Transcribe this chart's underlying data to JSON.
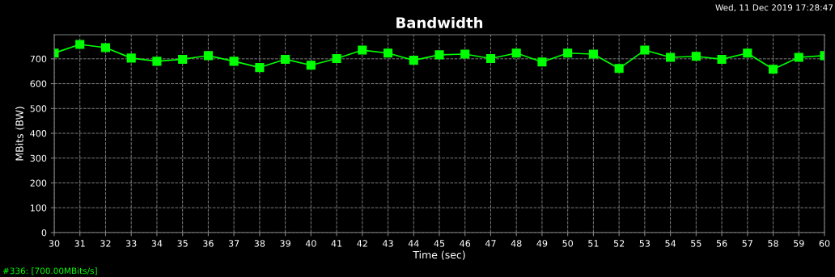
{
  "chart_data": {
    "type": "line",
    "title": "Bandwidth",
    "xlabel": "Time (sec)",
    "ylabel": "MBits (BW)",
    "x": [
      30,
      31,
      32,
      33,
      34,
      35,
      36,
      37,
      38,
      39,
      40,
      41,
      42,
      43,
      44,
      45,
      46,
      47,
      48,
      49,
      50,
      51,
      52,
      53,
      54,
      55,
      56,
      57,
      58,
      59,
      60
    ],
    "series": [
      {
        "color": "#00ff00",
        "values": [
          723,
          758,
          745,
          703,
          690,
          698,
          713,
          690,
          665,
          698,
          674,
          701,
          735,
          723,
          694,
          716,
          719,
          701,
          723,
          687,
          723,
          719,
          661,
          735,
          706,
          710,
          698,
          723,
          658,
          706,
          713
        ]
      }
    ],
    "xlim": [
      30,
      60
    ],
    "xticks": [
      30,
      31,
      32,
      33,
      34,
      35,
      36,
      37,
      38,
      39,
      40,
      41,
      42,
      43,
      44,
      45,
      46,
      47,
      48,
      49,
      50,
      51,
      52,
      53,
      54,
      55,
      56,
      57,
      58,
      59,
      60
    ],
    "ylim": [
      0,
      797
    ],
    "yticks": [
      0,
      100,
      200,
      300,
      400,
      500,
      600,
      700
    ],
    "grid": true,
    "marker": "square",
    "line_style": "solid",
    "annotations": [
      "Wed, 11 Dec 2019 17:28:47",
      "#336: [700.00MBits/s]"
    ]
  }
}
